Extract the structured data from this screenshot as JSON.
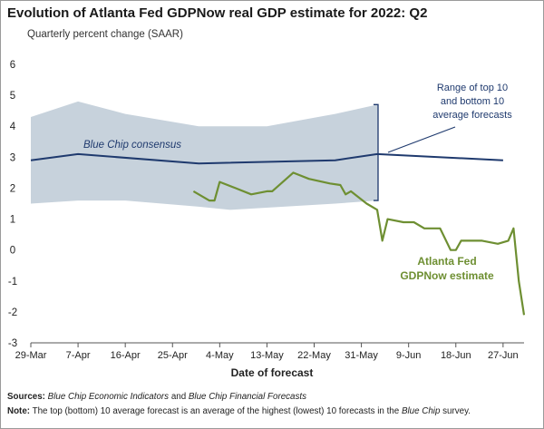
{
  "header": {
    "title": "Evolution of Atlanta Fed GDPNow real GDP estimate for 2022: Q2",
    "subtitle": "Quarterly percent change (SAAR)"
  },
  "footer": {
    "sources_label": "Sources:",
    "sources_part1": "Blue Chip Economic Indicators",
    "sources_and": " and ",
    "sources_part2": "Blue Chip Financial Forecasts",
    "note_label": "Note:",
    "note_text": " The top (bottom) 10 average forecast is an average of the highest (lowest) 10 forecasts in the ",
    "note_blue_chip": "Blue Chip",
    "note_end": " survey."
  },
  "chart_data": {
    "type": "line",
    "title": "Evolution of Atlanta Fed GDPNow real GDP estimate for 2022: Q2",
    "ylabel": "Quarterly percent change (SAAR)",
    "xlabel": "Date of forecast",
    "ylim": [
      -3,
      6
    ],
    "y_ticks": [
      -3,
      -2,
      -1,
      0,
      1,
      2,
      3,
      4,
      5,
      6
    ],
    "x_range": [
      0,
      94
    ],
    "x_ticks": [
      {
        "day": 0,
        "label": "29-Mar"
      },
      {
        "day": 9,
        "label": "7-Apr"
      },
      {
        "day": 18,
        "label": "16-Apr"
      },
      {
        "day": 27,
        "label": "25-Apr"
      },
      {
        "day": 36,
        "label": "4-May"
      },
      {
        "day": 45,
        "label": "13-May"
      },
      {
        "day": 54,
        "label": "22-May"
      },
      {
        "day": 63,
        "label": "31-May"
      },
      {
        "day": 72,
        "label": "9-Jun"
      },
      {
        "day": 81,
        "label": "18-Jun"
      },
      {
        "day": 90,
        "label": "27-Jun"
      }
    ],
    "grid": false,
    "series": [
      {
        "name": "Blue Chip consensus",
        "color": "#1f3a6e",
        "points": [
          [
            0,
            2.9
          ],
          [
            9,
            3.1
          ],
          [
            32,
            2.8
          ],
          [
            58,
            2.9
          ],
          [
            66,
            3.1
          ],
          [
            90,
            2.9
          ]
        ]
      },
      {
        "name": "Atlanta Fed GDPNow estimate",
        "color": "#6e8f32",
        "points": [
          [
            31,
            1.9
          ],
          [
            34,
            1.6
          ],
          [
            35,
            1.6
          ],
          [
            36,
            2.2
          ],
          [
            39,
            2.0
          ],
          [
            42,
            1.8
          ],
          [
            45,
            1.9
          ],
          [
            46,
            1.9
          ],
          [
            50,
            2.5
          ],
          [
            53,
            2.3
          ],
          [
            57,
            2.15
          ],
          [
            59,
            2.1
          ],
          [
            60,
            1.8
          ],
          [
            61,
            1.9
          ],
          [
            64,
            1.5
          ],
          [
            66,
            1.3
          ],
          [
            67,
            0.3
          ],
          [
            68,
            1.0
          ],
          [
            71,
            0.9
          ],
          [
            73,
            0.9
          ],
          [
            75,
            0.7
          ],
          [
            78,
            0.7
          ],
          [
            80,
            0.0
          ],
          [
            81,
            0.0
          ],
          [
            82,
            0.3
          ],
          [
            86,
            0.3
          ],
          [
            89,
            0.2
          ],
          [
            91,
            0.3
          ],
          [
            92,
            0.7
          ],
          [
            93,
            -1.0
          ],
          [
            94,
            -2.1
          ]
        ]
      }
    ],
    "range_band": {
      "name": "Range of top 10 and bottom 10 average forecasts",
      "color": "#c7d2dc",
      "upper": [
        [
          0,
          4.3
        ],
        [
          9,
          4.8
        ],
        [
          18,
          4.4
        ],
        [
          32,
          4.0
        ],
        [
          45,
          4.0
        ],
        [
          58,
          4.4
        ],
        [
          66,
          4.7
        ]
      ],
      "lower": [
        [
          0,
          1.5
        ],
        [
          9,
          1.6
        ],
        [
          18,
          1.6
        ],
        [
          32,
          1.4
        ],
        [
          38,
          1.3
        ],
        [
          58,
          1.5
        ],
        [
          66,
          1.6
        ]
      ]
    },
    "annotations": {
      "range_label_lines": [
        "Range of top 10",
        "and bottom 10",
        "average forecasts"
      ],
      "consensus_label": "Blue Chip consensus",
      "gdpnow_label_lines": [
        "Atlanta Fed",
        "GDPNow estimate"
      ]
    }
  }
}
